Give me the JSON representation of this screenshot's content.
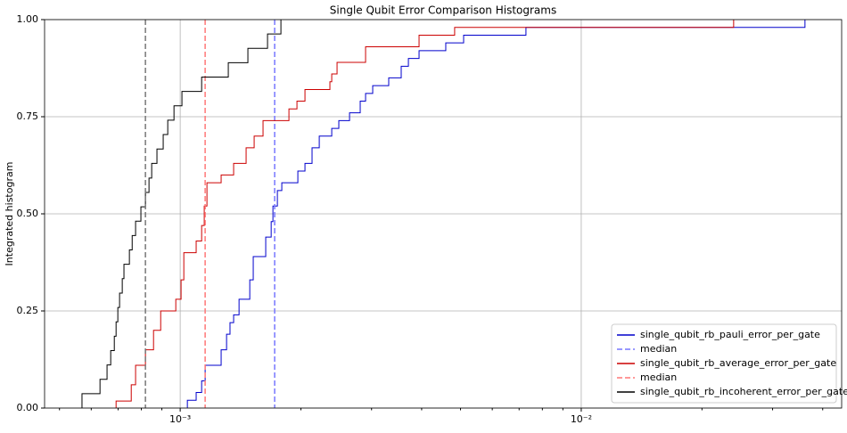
{
  "chart_data": {
    "type": "step",
    "title": "Single Qubit Error Comparison Histograms",
    "y_label": "Integrated histogram",
    "x_scale": "log",
    "grid": true,
    "legend": "lower right",
    "xlim": [
      0.000459,
      0.0446
    ],
    "ylim": [
      0,
      1
    ],
    "xticks": [
      {
        "value": 0.001,
        "label": "10⁻³"
      },
      {
        "value": 0.01,
        "label": "10⁻²"
      }
    ],
    "xminorticks": [
      0.0005,
      0.0006,
      0.0007,
      0.0008,
      0.0009,
      0.002,
      0.003,
      0.004,
      0.005,
      0.006,
      0.007,
      0.008,
      0.009,
      0.02,
      0.03,
      0.04
    ],
    "yticks": [
      {
        "value": 0,
        "label": "0.00"
      },
      {
        "value": 0.25,
        "label": "0.25"
      },
      {
        "value": 0.5,
        "label": "0.50"
      },
      {
        "value": 0.75,
        "label": "0.75"
      },
      {
        "value": 1,
        "label": "1.00"
      }
    ],
    "series": [
      {
        "name": "single_qubit_rb_pauli_error_per_gate",
        "color": "#0000cc",
        "x": [
          0.001042,
          0.001096,
          0.001131,
          0.001154,
          0.001265,
          0.001305,
          0.001331,
          0.001359,
          0.001402,
          0.001491,
          0.001521,
          0.001634,
          0.001686,
          0.001703,
          0.001747,
          0.001792,
          0.001965,
          0.002047,
          0.002132,
          0.002222,
          0.002387,
          0.002486,
          0.002644,
          0.002811,
          0.002899,
          0.00302,
          0.003311,
          0.003557,
          0.003707,
          0.003941,
          0.004594,
          0.00509,
          0.00728,
          0.03613
        ],
        "values": [
          0.02,
          0.04,
          0.07,
          0.11,
          0.15,
          0.19,
          0.22,
          0.24,
          0.28,
          0.33,
          0.39,
          0.44,
          0.48,
          0.52,
          0.56,
          0.58,
          0.61,
          0.63,
          0.67,
          0.7,
          0.72,
          0.74,
          0.76,
          0.79,
          0.81,
          0.83,
          0.85,
          0.88,
          0.9,
          0.92,
          0.94,
          0.96,
          0.98,
          1.0
        ],
        "median": {
          "name": "median",
          "value": 0.00172,
          "color": "#7777ff"
        }
      },
      {
        "name": "single_qubit_rb_average_error_per_gate",
        "color": "#cc0000",
        "x": [
          0.000692,
          0.000755,
          0.000774,
          0.000819,
          0.000858,
          0.000894,
          0.000975,
          0.001005,
          0.001021,
          0.001096,
          0.001131,
          0.001148,
          0.001166,
          0.001265,
          0.001359,
          0.00146,
          0.001529,
          0.001609,
          0.001867,
          0.001955,
          0.002047,
          0.002362,
          0.002387,
          0.002461,
          0.002899,
          0.003941,
          0.004834,
          0.02399
        ],
        "values": [
          0.018,
          0.06,
          0.11,
          0.15,
          0.2,
          0.25,
          0.28,
          0.33,
          0.4,
          0.43,
          0.47,
          0.52,
          0.58,
          0.6,
          0.63,
          0.67,
          0.7,
          0.74,
          0.77,
          0.79,
          0.82,
          0.84,
          0.86,
          0.89,
          0.93,
          0.96,
          0.98,
          1.0
        ],
        "median": {
          "name": "median",
          "value": 0.001154,
          "color": "#ff7777"
        }
      },
      {
        "name": "single_qubit_rb_incoherent_error_per_gate",
        "color": "#000000",
        "x": [
          0.000569,
          0.000631,
          0.000657,
          0.000671,
          0.000685,
          0.000692,
          0.000699,
          0.000706,
          0.000717,
          0.000724,
          0.000747,
          0.000759,
          0.000774,
          0.000798,
          0.000819,
          0.000836,
          0.000849,
          0.000875,
          0.000907,
          0.000931,
          0.000965,
          0.00101,
          0.001131,
          0.001318,
          0.001475,
          0.001651,
          0.001783
        ],
        "values": [
          0.037,
          0.074,
          0.111,
          0.148,
          0.185,
          0.222,
          0.259,
          0.296,
          0.333,
          0.37,
          0.407,
          0.444,
          0.481,
          0.518,
          0.555,
          0.592,
          0.63,
          0.667,
          0.704,
          0.741,
          0.778,
          0.815,
          0.852,
          0.889,
          0.926,
          0.963,
          1.0
        ],
        "median": {
          "value": 0.000819,
          "color": "#777777"
        }
      }
    ]
  }
}
